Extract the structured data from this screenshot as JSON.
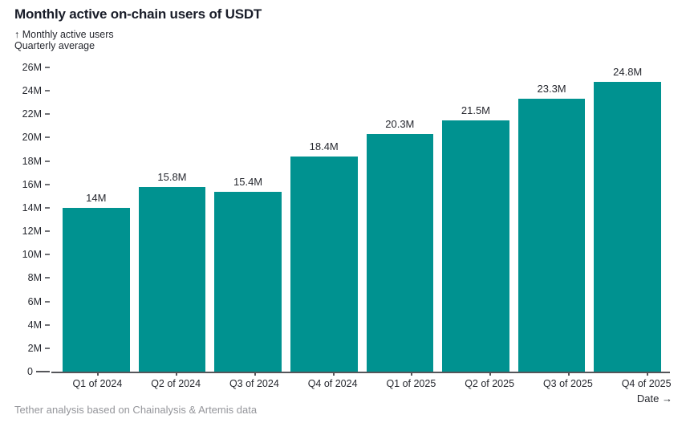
{
  "page": {
    "title": "Monthly active on-chain users of USDT",
    "y_axis_note_line1": "↑ Monthly active users",
    "y_axis_note_line2": "Quarterly average",
    "x_axis_note": "Date →",
    "source": "Tether analysis based on Chainalysis & Artemis data"
  },
  "colors": {
    "bar": "#009290",
    "title_text": "#191d29",
    "axis_text": "#26282f",
    "axis_line": "#55565a",
    "tick": "#707175",
    "muted_text": "#95969b",
    "background": "#ffffff"
  },
  "chart_data": {
    "type": "bar",
    "title": "Monthly active on-chain users of USDT",
    "subtitle": "Quarterly average",
    "categories": [
      "Q1 of 2024",
      "Q2 of 2024",
      "Q3 of 2024",
      "Q4 of 2024",
      "Q1 of 2025",
      "Q2 of 2025",
      "Q3 of 2025",
      "Q4 of 2025"
    ],
    "values": [
      14,
      15.8,
      15.4,
      18.4,
      20.3,
      21.5,
      23.3,
      24.8
    ],
    "value_labels": [
      "14M",
      "15.8M",
      "15.4M",
      "18.4M",
      "20.3M",
      "21.5M",
      "23.3M",
      "24.8M"
    ],
    "unit": "millions of users",
    "ylabel": "Monthly active users",
    "xlabel": "Date",
    "ylim": [
      0,
      26
    ],
    "ytick_step": 2,
    "ytick_labels": [
      "0",
      "2M",
      "4M",
      "6M",
      "8M",
      "10M",
      "12M",
      "14M",
      "16M",
      "18M",
      "20M",
      "22M",
      "24M",
      "26M"
    ],
    "grid": false,
    "legend": "none",
    "bar_color": "#009290",
    "source": "Tether analysis based on Chainalysis & Artemis data"
  }
}
